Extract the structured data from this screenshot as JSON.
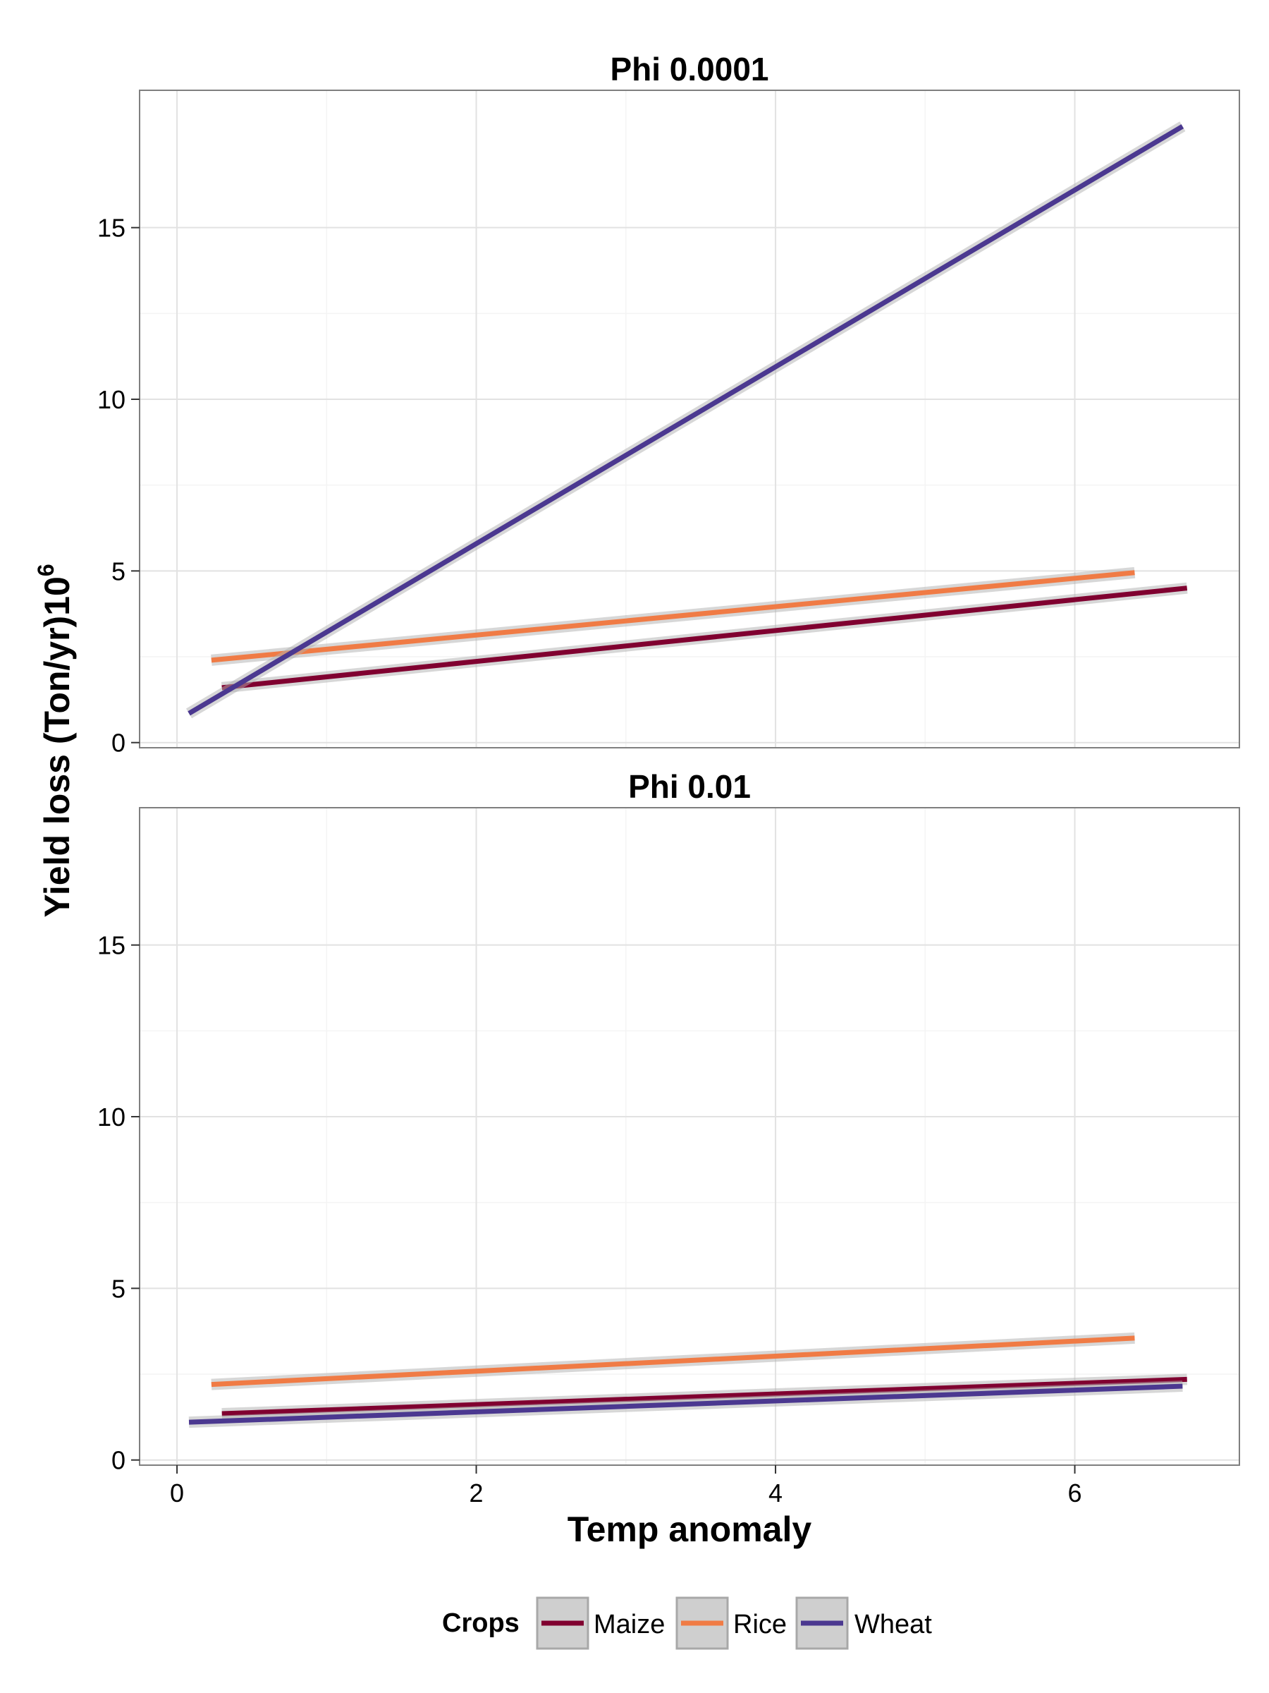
{
  "chart_data": {
    "type": "line",
    "xlabel": "Temp anomaly",
    "ylabel": "Yield loss  (Ton/yr)10",
    "ylabel_superscript": "6",
    "xlim": [
      -0.25,
      7.1
    ],
    "ylim": [
      -0.15,
      19.0
    ],
    "x_ticks": [
      0,
      2,
      4,
      6
    ],
    "y_ticks": [
      0,
      5,
      10,
      15
    ],
    "grid": true,
    "legend": {
      "title": "Crops",
      "position": "bottom",
      "items": [
        {
          "name": "Maize",
          "color": "#800030"
        },
        {
          "name": "Rice",
          "color": "#F07B45"
        },
        {
          "name": "Wheat",
          "color": "#4B3890"
        }
      ]
    },
    "panels": [
      {
        "title": "Phi 0.0001",
        "series": [
          {
            "name": "Maize",
            "color": "#800030",
            "x": [
              0.3,
              6.75
            ],
            "y": [
              1.6,
              4.5
            ]
          },
          {
            "name": "Rice",
            "color": "#F07B45",
            "x": [
              0.23,
              6.4
            ],
            "y": [
              2.4,
              4.95
            ]
          },
          {
            "name": "Wheat",
            "color": "#4B3890",
            "x": [
              0.08,
              6.72
            ],
            "y": [
              0.85,
              17.95
            ]
          }
        ]
      },
      {
        "title": "Phi 0.01",
        "series": [
          {
            "name": "Maize",
            "color": "#800030",
            "x": [
              0.3,
              6.75
            ],
            "y": [
              1.35,
              2.35
            ]
          },
          {
            "name": "Rice",
            "color": "#F07B45",
            "x": [
              0.23,
              6.4
            ],
            "y": [
              2.2,
              3.55
            ]
          },
          {
            "name": "Wheat",
            "color": "#4B3890",
            "x": [
              0.08,
              6.72
            ],
            "y": [
              1.1,
              2.15
            ]
          }
        ]
      }
    ]
  }
}
